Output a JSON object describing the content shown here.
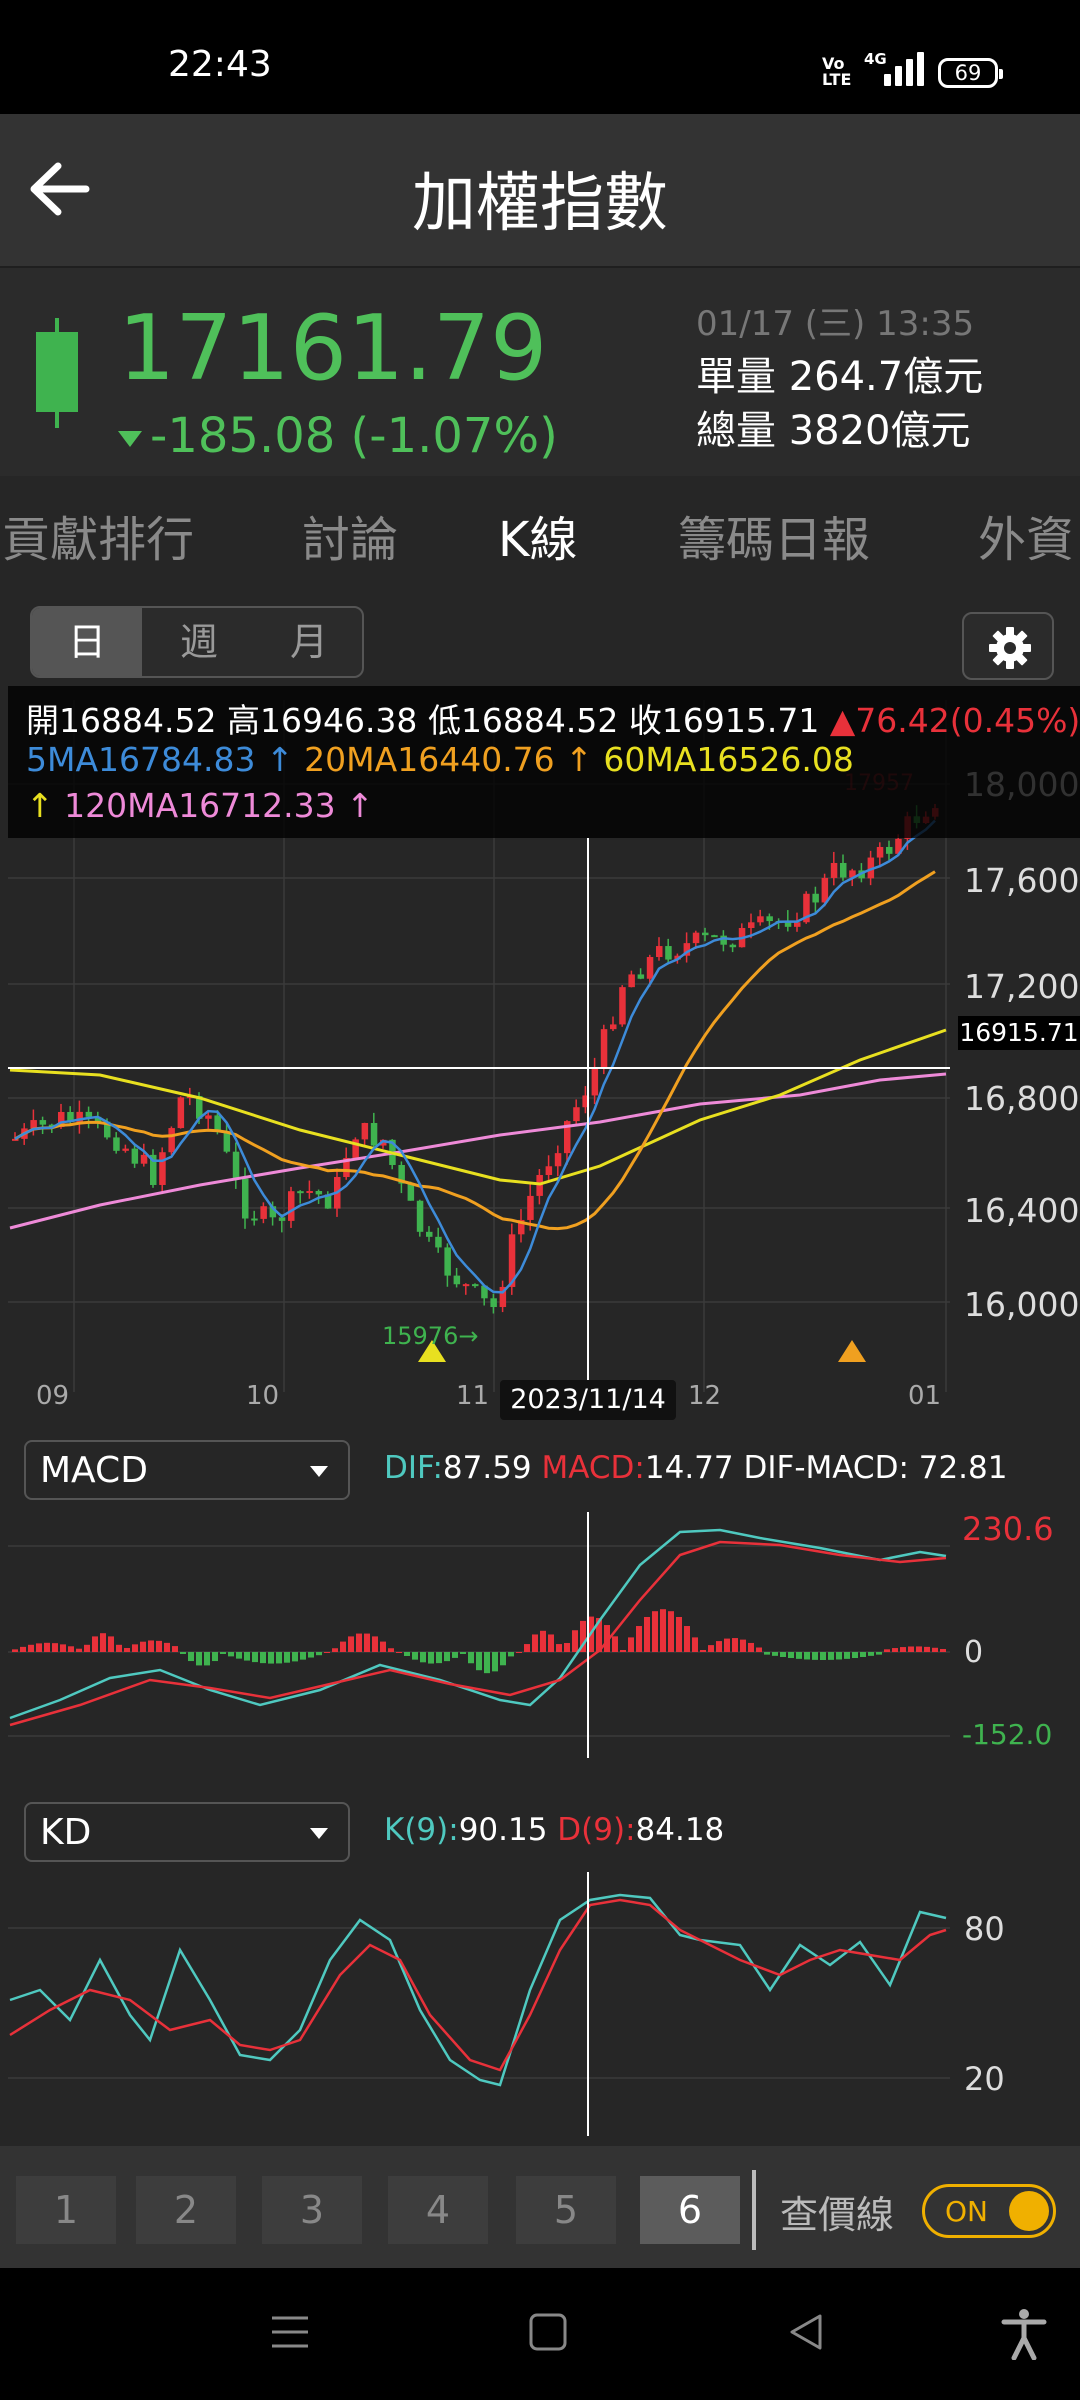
{
  "status": {
    "time": "22:43",
    "network": "4G",
    "volte": "Vo\nLTE",
    "battery": "69"
  },
  "header": {
    "title": "加權指數"
  },
  "quote": {
    "price": "17161.79",
    "change": "-185.08 (-1.07%)",
    "datetime": "01/17 (三) 13:35",
    "volume": "單量 264.7億元",
    "total": "總量 3820億元"
  },
  "tabs": [
    "貢獻排行",
    "討論",
    "K線",
    "籌碼日報",
    "外資"
  ],
  "period": [
    "日",
    "週",
    "月"
  ],
  "ohlc": {
    "open": "開16884.52",
    "high": "高16946.38",
    "low": "低16884.52",
    "close": "收16915.71",
    "chg": "▲76.42(0.45%)",
    "ma5": "5MA16784.83",
    "ma20": "20MA16440.76",
    "ma60": "60MA16526.08",
    "ma120": "120MA16712.33",
    "arrow": "↑"
  },
  "chart": {
    "y_labels": [
      "18,000",
      "17,600",
      "17,200",
      "16,800",
      "16,400",
      "16,000"
    ],
    "x_labels": [
      "09",
      "10",
      "11",
      "12",
      "01"
    ],
    "last_price": "16915.71",
    "hover_date": "2023/11/14",
    "high_mark": "17957",
    "low_mark": "15976→",
    "colors": {
      "up": "#e8313a",
      "down": "#3fb34f",
      "ma5": "#3d8bd9",
      "ma20": "#f0a020",
      "ma60": "#e8e020",
      "ma120": "#ee8ad8"
    }
  },
  "macd": {
    "select": "MACD",
    "dif_label": "DIF:",
    "dif_value": "87.59",
    "macd_label": "MACD:",
    "macd_value": "14.77",
    "diffmacd": "DIF-MACD: 72.81",
    "axis": [
      "230.6",
      "0",
      "-152.0"
    ]
  },
  "kd": {
    "select": "KD",
    "k_label": "K(9):",
    "k_value": "90.15",
    "d_label": "D(9):",
    "d_value": "84.18",
    "axis": [
      "80",
      "20"
    ]
  },
  "bottom": {
    "numbers": [
      "1",
      "2",
      "3",
      "4",
      "5",
      "6"
    ],
    "price_line": "查價線",
    "toggle": "ON"
  }
}
